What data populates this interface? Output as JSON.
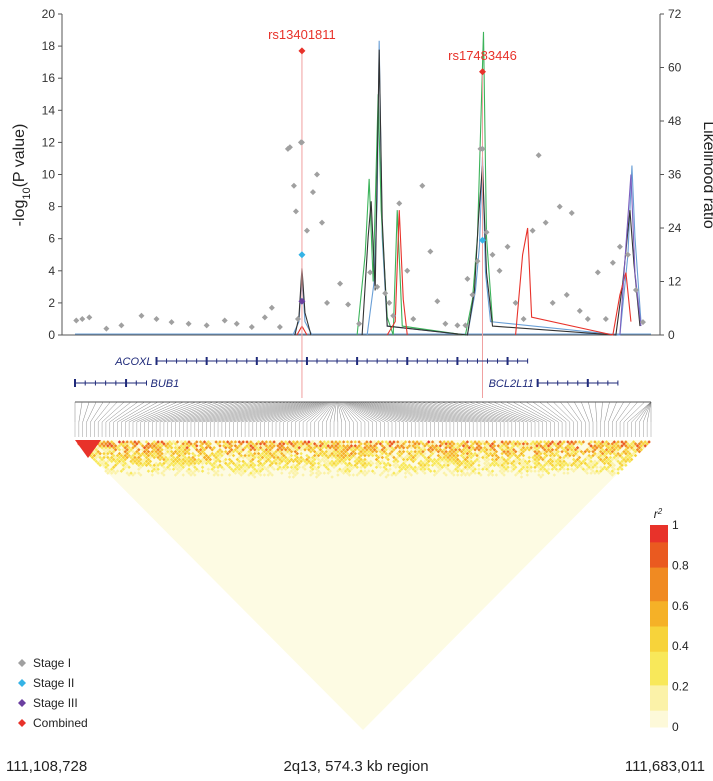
{
  "chart_data": {
    "type": "scatter",
    "region_label": "2q13, 574.3 kb region",
    "start_position": "111,108,728",
    "end_position": "111,683,011",
    "ylabel_left_prefix": "-log",
    "ylabel_left_sub": "10",
    "ylabel_left_suffix": "(P value)",
    "ylabel_right": "Likelihood ratio",
    "ylim_left": [
      0,
      20
    ],
    "ylim_right": [
      0,
      72
    ],
    "yticks_left": [
      "0",
      "2",
      "4",
      "6",
      "8",
      "10",
      "12",
      "14",
      "16",
      "18",
      "20"
    ],
    "yticks_right": [
      "0",
      "12",
      "24",
      "36",
      "48",
      "60",
      "72"
    ],
    "genes": [
      {
        "name": "ACOXL",
        "start": 111190000,
        "end": 111560000
      },
      {
        "name": "BUB1",
        "start": 111108728,
        "end": 111180000
      },
      {
        "name": "BCL2L11",
        "start": 111570000,
        "end": 111650000
      }
    ],
    "highlighted_snps": [
      {
        "name": "rs13401811",
        "position": 111335000,
        "value": 17.7
      },
      {
        "name": "rs17483446",
        "position": 111515000,
        "value": 16.4
      }
    ],
    "series": [
      {
        "name": "Stage I",
        "color": "#a0a0a0",
        "points": [
          [
            111110000,
            0.9
          ],
          [
            111116000,
            1.0
          ],
          [
            111123000,
            1.1
          ],
          [
            111140000,
            0.4
          ],
          [
            111155000,
            0.6
          ],
          [
            111175000,
            1.2
          ],
          [
            111190000,
            1.0
          ],
          [
            111205000,
            0.8
          ],
          [
            111222000,
            0.7
          ],
          [
            111240000,
            0.6
          ],
          [
            111258000,
            0.9
          ],
          [
            111270000,
            0.7
          ],
          [
            111285000,
            0.5
          ],
          [
            111298000,
            1.1
          ],
          [
            111305000,
            1.7
          ],
          [
            111313000,
            0.5
          ],
          [
            111321000,
            11.6
          ],
          [
            111323000,
            11.7
          ],
          [
            111327000,
            9.3
          ],
          [
            111329000,
            7.7
          ],
          [
            111331000,
            1.0
          ],
          [
            111334000,
            12.0
          ],
          [
            111335000,
            12.0
          ],
          [
            111340000,
            6.5
          ],
          [
            111346000,
            8.9
          ],
          [
            111350000,
            10.0
          ],
          [
            111355000,
            7.0
          ],
          [
            111360000,
            2.0
          ],
          [
            111373000,
            3.2
          ],
          [
            111381000,
            1.9
          ],
          [
            111392000,
            0.7
          ],
          [
            111403000,
            3.9
          ],
          [
            111410000,
            3.0
          ],
          [
            111418000,
            2.6
          ],
          [
            111422000,
            2.0
          ],
          [
            111426000,
            1.2
          ],
          [
            111432000,
            8.2
          ],
          [
            111440000,
            4.0
          ],
          [
            111446000,
            1.0
          ],
          [
            111455000,
            9.3
          ],
          [
            111463000,
            5.2
          ],
          [
            111470000,
            2.1
          ],
          [
            111478000,
            0.7
          ],
          [
            111490000,
            0.6
          ],
          [
            111498000,
            0.6
          ],
          [
            111500000,
            3.5
          ],
          [
            111505000,
            2.5
          ],
          [
            111510000,
            4.6
          ],
          [
            111513000,
            11.6
          ],
          [
            111515000,
            11.6
          ],
          [
            111519000,
            6.4
          ],
          [
            111525000,
            5.0
          ],
          [
            111532000,
            4.0
          ],
          [
            111540000,
            5.5
          ],
          [
            111548000,
            2.0
          ],
          [
            111556000,
            1.0
          ],
          [
            111565000,
            6.5
          ],
          [
            111571000,
            11.2
          ],
          [
            111578000,
            7.0
          ],
          [
            111585000,
            2.0
          ],
          [
            111592000,
            8.0
          ],
          [
            111599000,
            2.5
          ],
          [
            111604000,
            7.6
          ],
          [
            111612000,
            1.5
          ],
          [
            111620000,
            1.0
          ],
          [
            111630000,
            3.9
          ],
          [
            111638000,
            1.0
          ],
          [
            111645000,
            4.5
          ],
          [
            111652000,
            5.5
          ],
          [
            111660000,
            5.0
          ],
          [
            111668000,
            2.8
          ],
          [
            111675000,
            0.8
          ]
        ]
      },
      {
        "name": "Stage II",
        "color": "#35b3e6",
        "points": [
          [
            111335000,
            5.0
          ],
          [
            111515000,
            5.9
          ]
        ]
      },
      {
        "name": "Stage III",
        "color": "#6b3fa0",
        "points": [
          [
            111335000,
            2.1
          ]
        ]
      },
      {
        "name": "Combined",
        "color": "#e8322a",
        "points": [
          [
            111335000,
            17.7
          ],
          [
            111515000,
            16.4
          ]
        ]
      }
    ],
    "lr_peaks": [
      {
        "color": "#6a9fd6",
        "points": [
          [
            111326000,
            0
          ],
          [
            111332000,
            3
          ],
          [
            111335000,
            14
          ],
          [
            111338000,
            3
          ],
          [
            111345000,
            0
          ],
          [
            111400000,
            0
          ],
          [
            111407000,
            12
          ],
          [
            111410000,
            30
          ],
          [
            111412000,
            66
          ],
          [
            111415000,
            22
          ],
          [
            111420000,
            2
          ],
          [
            111500000,
            0
          ],
          [
            111508000,
            10
          ],
          [
            111512000,
            20
          ],
          [
            111515000,
            40
          ],
          [
            111518000,
            14
          ],
          [
            111523000,
            3
          ],
          [
            111652000,
            0
          ],
          [
            111660000,
            18
          ],
          [
            111664000,
            38
          ],
          [
            111667000,
            22
          ],
          [
            111673000,
            3
          ]
        ]
      },
      {
        "color": "#3cb35a",
        "points": [
          [
            111390000,
            0
          ],
          [
            111398000,
            18
          ],
          [
            111402000,
            35
          ],
          [
            111406000,
            12
          ],
          [
            111411000,
            54
          ],
          [
            111414000,
            28
          ],
          [
            111420000,
            4
          ],
          [
            111426000,
            0
          ],
          [
            111430000,
            28
          ],
          [
            111435000,
            2
          ],
          [
            111498000,
            0
          ],
          [
            111505000,
            8
          ],
          [
            111510000,
            22
          ],
          [
            111516000,
            68
          ],
          [
            111519000,
            22
          ],
          [
            111525000,
            3
          ]
        ]
      },
      {
        "color": "#333333",
        "points": [
          [
            111328000,
            0
          ],
          [
            111332000,
            4
          ],
          [
            111335000,
            15
          ],
          [
            111338000,
            5
          ],
          [
            111344000,
            0
          ],
          [
            111395000,
            0
          ],
          [
            111401000,
            22
          ],
          [
            111404000,
            30
          ],
          [
            111408000,
            10
          ],
          [
            111412000,
            64
          ],
          [
            111415000,
            26
          ],
          [
            111420000,
            2
          ],
          [
            111500000,
            0
          ],
          [
            111507000,
            10
          ],
          [
            111511000,
            26
          ],
          [
            111515000,
            38
          ],
          [
            111519000,
            14
          ],
          [
            111525000,
            2
          ],
          [
            111648000,
            0
          ],
          [
            111655000,
            12
          ],
          [
            111662000,
            28
          ],
          [
            111666000,
            16
          ],
          [
            111672000,
            2
          ]
        ]
      },
      {
        "color": "#e8322a",
        "points": [
          [
            111330000,
            0
          ],
          [
            111335000,
            2
          ],
          [
            111340000,
            0
          ],
          [
            111420000,
            0
          ],
          [
            111428000,
            3
          ],
          [
            111432000,
            28
          ],
          [
            111436000,
            8
          ],
          [
            111440000,
            0
          ],
          [
            111548000,
            0
          ],
          [
            111555000,
            18
          ],
          [
            111560000,
            24
          ],
          [
            111564000,
            4
          ],
          [
            111645000,
            0
          ],
          [
            111652000,
            9
          ],
          [
            111658000,
            14
          ],
          [
            111663000,
            3
          ]
        ]
      },
      {
        "color": "#7b5fbf",
        "points": [
          [
            111652000,
            0
          ],
          [
            111658000,
            20
          ],
          [
            111663000,
            36
          ],
          [
            111667000,
            14
          ],
          [
            111673000,
            2
          ]
        ]
      }
    ],
    "r2_legend": {
      "title": "r",
      "title_sup": "2",
      "ticks": [
        "0",
        "0.2",
        "0.4",
        "0.6",
        "0.8",
        "1"
      ]
    }
  },
  "legend": [
    {
      "label": "Stage I",
      "color": "#a0a0a0"
    },
    {
      "label": "Stage II",
      "color": "#35b3e6"
    },
    {
      "label": "Stage III",
      "color": "#6b3fa0"
    },
    {
      "label": "Combined",
      "color": "#e8322a"
    }
  ]
}
